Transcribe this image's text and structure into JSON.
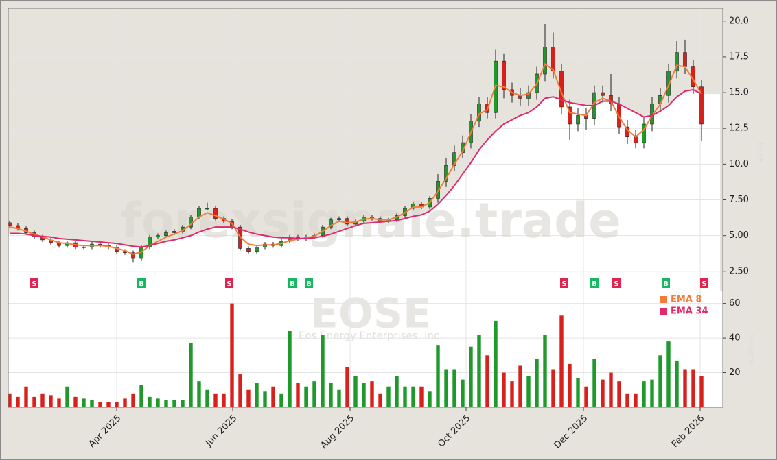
{
  "chart_data": {
    "type": "candlestick",
    "watermark": "forexsignale.trade",
    "symbol": "EOSE",
    "company": "Eos Energy Enterprises, Inc.",
    "y_label": "Price",
    "volume_label": "Volume",
    "x": [
      0,
      3,
      6,
      9,
      12,
      15,
      18,
      21,
      24,
      27,
      30,
      33,
      36,
      39,
      42,
      45,
      48,
      51,
      54,
      57,
      60,
      63,
      66,
      69,
      72,
      75,
      78,
      81,
      84,
      87,
      90,
      93,
      96,
      99,
      102,
      105,
      108,
      111,
      114,
      117,
      120,
      123,
      126,
      129,
      132,
      135,
      138,
      141,
      144,
      147,
      150,
      153,
      156,
      159,
      162,
      165,
      168,
      171,
      174,
      177,
      180,
      183,
      186,
      189,
      192,
      195,
      198,
      201,
      204,
      207,
      210,
      213,
      216,
      219,
      222,
      225,
      228,
      231,
      234,
      237,
      240,
      243,
      246,
      249,
      252
    ],
    "open": [
      5.9,
      5.7,
      5.5,
      5.2,
      4.9,
      4.7,
      4.5,
      4.3,
      4.5,
      4.2,
      4.2,
      4.4,
      4.3,
      4.2,
      3.9,
      3.8,
      3.4,
      4.2,
      4.9,
      5.0,
      5.2,
      5.3,
      5.6,
      6.3,
      6.9,
      6.9,
      6.2,
      6.0,
      5.6,
      4.1,
      3.9,
      4.2,
      4.4,
      4.3,
      4.6,
      4.9,
      4.8,
      4.9,
      5.0,
      5.6,
      6.1,
      6.2,
      5.8,
      6.0,
      6.3,
      6.2,
      6.0,
      6.1,
      6.4,
      6.9,
      7.2,
      7.0,
      7.6,
      8.8,
      9.9,
      10.8,
      11.5,
      13.0,
      14.2,
      13.6,
      17.2,
      15.2,
      14.8,
      14.6,
      15.0,
      16.3,
      18.2,
      16.5,
      14.0,
      12.8,
      13.4,
      13.2,
      15.0,
      14.8,
      14.2,
      12.6,
      11.9,
      11.5,
      12.8,
      14.2,
      14.8,
      16.5,
      17.8,
      16.8,
      15.4
    ],
    "high": [
      6.05,
      5.85,
      5.65,
      5.35,
      5.05,
      4.85,
      4.65,
      4.65,
      4.65,
      4.35,
      4.55,
      4.55,
      4.45,
      4.35,
      4.05,
      3.95,
      4.35,
      5.05,
      5.15,
      5.35,
      5.45,
      5.75,
      6.45,
      7.05,
      7.3,
      7.05,
      6.35,
      6.15,
      5.75,
      4.25,
      4.35,
      4.55,
      4.55,
      4.75,
      5.05,
      5.05,
      5.05,
      5.15,
      5.75,
      6.25,
      6.35,
      6.35,
      6.15,
      6.45,
      6.45,
      6.35,
      6.25,
      6.55,
      7.05,
      7.35,
      7.35,
      7.75,
      9.3,
      10.4,
      11.3,
      12.0,
      13.5,
      14.7,
      14.7,
      18.0,
      17.7,
      15.7,
      15.3,
      15.5,
      16.8,
      19.8,
      19.2,
      17.0,
      14.5,
      13.9,
      13.9,
      15.5,
      15.5,
      16.3,
      14.7,
      13.1,
      12.4,
      13.3,
      14.7,
      15.3,
      17.0,
      18.6,
      18.7,
      17.3,
      15.9
    ],
    "low": [
      5.55,
      5.35,
      5.05,
      4.75,
      4.55,
      4.35,
      4.15,
      4.15,
      4.05,
      4.05,
      4.05,
      4.15,
      4.05,
      3.75,
      3.65,
      3.15,
      3.25,
      4.05,
      4.75,
      4.85,
      5.05,
      5.15,
      5.45,
      6.15,
      6.75,
      6.05,
      5.85,
      5.45,
      3.95,
      3.75,
      3.75,
      4.05,
      4.15,
      4.15,
      4.45,
      4.65,
      4.65,
      4.75,
      4.85,
      5.45,
      5.95,
      5.65,
      5.65,
      5.85,
      6.05,
      5.85,
      5.85,
      5.95,
      6.25,
      6.75,
      6.85,
      6.85,
      7.3,
      8.4,
      9.5,
      10.4,
      11.1,
      12.6,
      13.2,
      13.2,
      14.6,
      14.3,
      14.1,
      14.1,
      14.5,
      15.8,
      16.0,
      13.5,
      11.7,
      12.3,
      12.4,
      12.7,
      14.3,
      13.7,
      12.1,
      11.4,
      11.1,
      11.1,
      12.3,
      13.7,
      14.3,
      16.0,
      16.3,
      14.9,
      11.6
    ],
    "close": [
      5.7,
      5.5,
      5.2,
      4.9,
      4.7,
      4.5,
      4.3,
      4.5,
      4.2,
      4.2,
      4.4,
      4.3,
      4.2,
      3.9,
      3.8,
      3.4,
      4.2,
      4.9,
      5.0,
      5.2,
      5.3,
      5.6,
      6.3,
      6.9,
      6.9,
      6.2,
      6.0,
      5.6,
      4.1,
      3.9,
      4.2,
      4.4,
      4.3,
      4.6,
      4.9,
      4.8,
      4.9,
      5.0,
      5.6,
      6.1,
      6.2,
      5.8,
      6.0,
      6.3,
      6.2,
      6.0,
      6.1,
      6.4,
      6.9,
      7.2,
      7.0,
      7.6,
      8.8,
      9.9,
      10.8,
      11.5,
      13.0,
      14.2,
      13.6,
      17.2,
      15.2,
      14.8,
      14.6,
      15.0,
      16.3,
      18.2,
      16.5,
      14.0,
      12.8,
      13.4,
      13.2,
      15.0,
      14.8,
      14.2,
      12.6,
      11.9,
      11.5,
      12.8,
      14.2,
      14.8,
      16.5,
      17.8,
      16.8,
      15.4,
      12.8
    ],
    "volume": [
      8,
      6,
      12,
      6,
      8,
      7,
      5,
      12,
      6,
      5,
      4,
      3,
      3,
      3,
      5,
      8,
      13,
      6,
      5,
      4,
      4,
      4,
      37,
      15,
      10,
      8,
      8,
      60,
      19,
      10,
      14,
      9,
      12,
      8,
      44,
      14,
      12,
      15,
      42,
      14,
      10,
      23,
      18,
      14,
      15,
      8,
      12,
      18,
      12,
      12,
      12,
      9,
      36,
      22,
      22,
      16,
      35,
      42,
      30,
      50,
      20,
      15,
      24,
      18,
      28,
      42,
      22,
      53,
      25,
      17,
      12,
      28,
      16,
      20,
      15,
      8,
      8,
      15,
      16,
      30,
      38,
      27,
      22,
      22,
      18
    ],
    "up_color": "#1f9a2a",
    "down_color": "#d8201c",
    "series": [
      {
        "name": "EMA 8",
        "color": "#f47c3a",
        "values": [
          5.6,
          5.5,
          5.3,
          5.1,
          4.9,
          4.7,
          4.5,
          4.45,
          4.35,
          4.3,
          4.3,
          4.3,
          4.25,
          4.1,
          3.95,
          3.7,
          3.85,
          4.3,
          4.6,
          4.9,
          5.1,
          5.35,
          5.8,
          6.3,
          6.6,
          6.4,
          6.15,
          5.85,
          4.9,
          4.4,
          4.3,
          4.35,
          4.35,
          4.45,
          4.65,
          4.75,
          4.85,
          4.95,
          5.3,
          5.7,
          6.0,
          5.9,
          5.95,
          6.15,
          6.2,
          6.1,
          6.1,
          6.3,
          6.6,
          7.0,
          7.0,
          7.3,
          8.1,
          9.0,
          10.0,
          10.9,
          12.2,
          13.5,
          13.8,
          15.5,
          15.4,
          15.0,
          14.8,
          14.9,
          15.6,
          17.0,
          16.6,
          15.0,
          13.6,
          13.5,
          13.4,
          14.3,
          14.6,
          14.4,
          13.3,
          12.4,
          11.9,
          12.4,
          13.4,
          14.2,
          15.5,
          16.9,
          16.8,
          15.9,
          14.9
        ]
      },
      {
        "name": "EMA 34",
        "color": "#e0286a",
        "values": [
          5.15,
          5.15,
          5.1,
          5.0,
          4.95,
          4.9,
          4.8,
          4.75,
          4.7,
          4.65,
          4.6,
          4.55,
          4.5,
          4.45,
          4.35,
          4.25,
          4.2,
          4.3,
          4.45,
          4.6,
          4.7,
          4.85,
          5.0,
          5.25,
          5.45,
          5.6,
          5.6,
          5.6,
          5.45,
          5.25,
          5.1,
          5.0,
          4.9,
          4.85,
          4.85,
          4.8,
          4.8,
          4.85,
          4.95,
          5.1,
          5.3,
          5.5,
          5.7,
          5.85,
          5.9,
          5.95,
          6.0,
          6.05,
          6.2,
          6.35,
          6.45,
          6.7,
          7.2,
          7.8,
          8.5,
          9.3,
          10.1,
          11.0,
          11.7,
          12.3,
          12.8,
          13.1,
          13.4,
          13.6,
          14.0,
          14.6,
          14.7,
          14.5,
          14.3,
          14.2,
          14.1,
          14.1,
          14.4,
          14.4,
          14.2,
          13.9,
          13.6,
          13.3,
          13.4,
          13.7,
          14.1,
          14.7,
          15.1,
          15.2,
          14.9
        ]
      }
    ],
    "signals": [
      {
        "x": 9,
        "label": "S"
      },
      {
        "x": 48,
        "label": "B"
      },
      {
        "x": 80,
        "label": "S"
      },
      {
        "x": 103,
        "label": "B"
      },
      {
        "x": 109,
        "label": "B"
      },
      {
        "x": 202,
        "label": "S"
      },
      {
        "x": 213,
        "label": "B"
      },
      {
        "x": 221,
        "label": "S"
      },
      {
        "x": 239,
        "label": "B"
      },
      {
        "x": 253,
        "label": "S"
      }
    ],
    "signal_colors": {
      "S": "#e0244f",
      "B": "#17b862"
    },
    "xlim": [
      -0.5,
      259.75
    ],
    "xticks": [
      {
        "value": 39,
        "label": "Apr 2025"
      },
      {
        "value": 81.25,
        "label": "Jun 2025"
      },
      {
        "value": 124,
        "label": "Aug 2025"
      },
      {
        "value": 166.25,
        "label": "Oct 2025"
      },
      {
        "value": 209,
        "label": "Dec 2025"
      },
      {
        "value": 251.5,
        "label": "Feb 2026"
      }
    ],
    "ylim": [
      1.1,
      20.9
    ],
    "yticks": [
      {
        "value": 2.5,
        "label": "2.50"
      },
      {
        "value": 5,
        "label": "5.00"
      },
      {
        "value": 7.5,
        "label": "7.50"
      },
      {
        "value": 10,
        "label": "10.0"
      },
      {
        "value": 12.5,
        "label": "12.5"
      },
      {
        "value": 15,
        "label": "15.0"
      },
      {
        "value": 17.5,
        "label": "17.5"
      },
      {
        "value": 20,
        "label": "20.0"
      }
    ],
    "volume_ylim": [
      0,
      65
    ],
    "volume_yticks": [
      20,
      40,
      60
    ],
    "grid": true,
    "legend": "lower right"
  }
}
